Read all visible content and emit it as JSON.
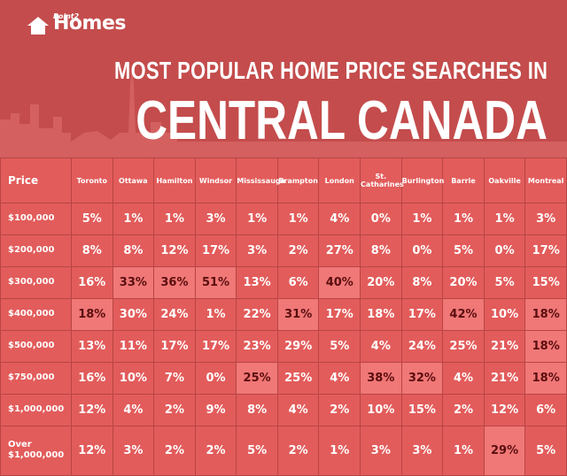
{
  "logo": {
    "small": "Point2",
    "name": "Homes"
  },
  "header": {
    "title_line1": "MOST POPULAR HOME PRICE SEARCHES IN",
    "title_line2": "CENTRAL CANADA"
  },
  "table": {
    "columns": [
      "Price",
      "Toronto",
      "Ottawa",
      "Hamilton",
      "Windsor",
      "Mississauga",
      "Brampton",
      "London",
      "St. Catharines",
      "Burlington",
      "Barrie",
      "Oakville",
      "Montreal"
    ],
    "rows": [
      [
        "$100,000",
        "5%",
        "1%",
        "1%",
        "3%",
        "1%",
        "1%",
        "4%",
        "0%",
        "1%",
        "1%",
        "1%",
        "3%"
      ],
      [
        "$200,000",
        "8%",
        "8%",
        "12%",
        "17%",
        "3%",
        "2%",
        "27%",
        "8%",
        "0%",
        "5%",
        "0%",
        "17%"
      ],
      [
        "$300,000",
        "16%",
        "33%",
        "36%",
        "51%",
        "13%",
        "6%",
        "40%",
        "20%",
        "8%",
        "20%",
        "5%",
        "15%"
      ],
      [
        "$400,000",
        "18%",
        "30%",
        "24%",
        "1%",
        "22%",
        "31%",
        "17%",
        "18%",
        "17%",
        "42%",
        "10%",
        "18%"
      ],
      [
        "$500,000",
        "13%",
        "11%",
        "17%",
        "17%",
        "23%",
        "29%",
        "5%",
        "4%",
        "24%",
        "25%",
        "21%",
        "18%"
      ],
      [
        "$750,000",
        "16%",
        "10%",
        "7%",
        "0%",
        "25%",
        "25%",
        "4%",
        "38%",
        "32%",
        "4%",
        "21%",
        "18%"
      ],
      [
        "$1,000,000",
        "12%",
        "4%",
        "2%",
        "9%",
        "8%",
        "4%",
        "2%",
        "10%",
        "15%",
        "2%",
        "12%",
        "6%"
      ],
      [
        "Over $1,000,000",
        "12%",
        "3%",
        "2%",
        "2%",
        "5%",
        "2%",
        "1%",
        "3%",
        "3%",
        "1%",
        "29%",
        "5%"
      ]
    ],
    "highlight": [
      [
        2,
        2
      ],
      [
        2,
        3
      ],
      [
        2,
        4
      ],
      [
        2,
        7
      ],
      [
        3,
        1
      ],
      [
        3,
        6
      ],
      [
        3,
        10
      ],
      [
        3,
        12
      ],
      [
        4,
        12
      ],
      [
        5,
        5
      ],
      [
        5,
        8
      ],
      [
        5,
        9
      ],
      [
        5,
        12
      ],
      [
        7,
        11
      ]
    ]
  }
}
